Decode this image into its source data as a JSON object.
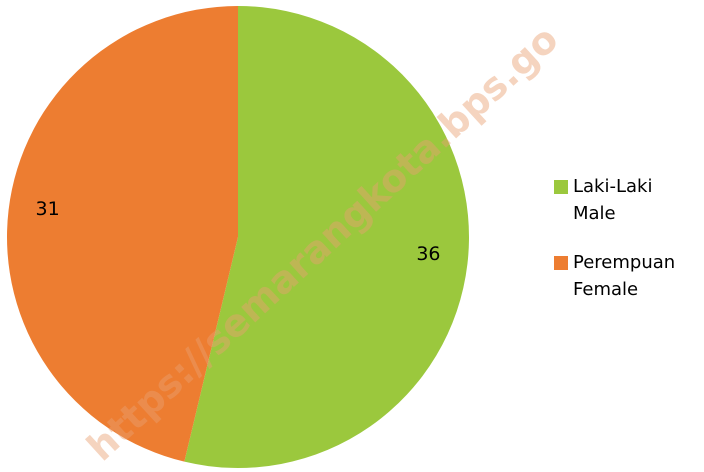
{
  "chart_data": {
    "type": "pie",
    "categories": [
      [
        "Laki-Laki",
        "Male"
      ],
      [
        "Perempuan",
        "Female"
      ]
    ],
    "values": [
      36,
      31
    ],
    "colors": [
      "#9bc83d",
      "#ed7d31"
    ],
    "legend": "right",
    "watermark": "https://semarangkota.bps.go"
  }
}
